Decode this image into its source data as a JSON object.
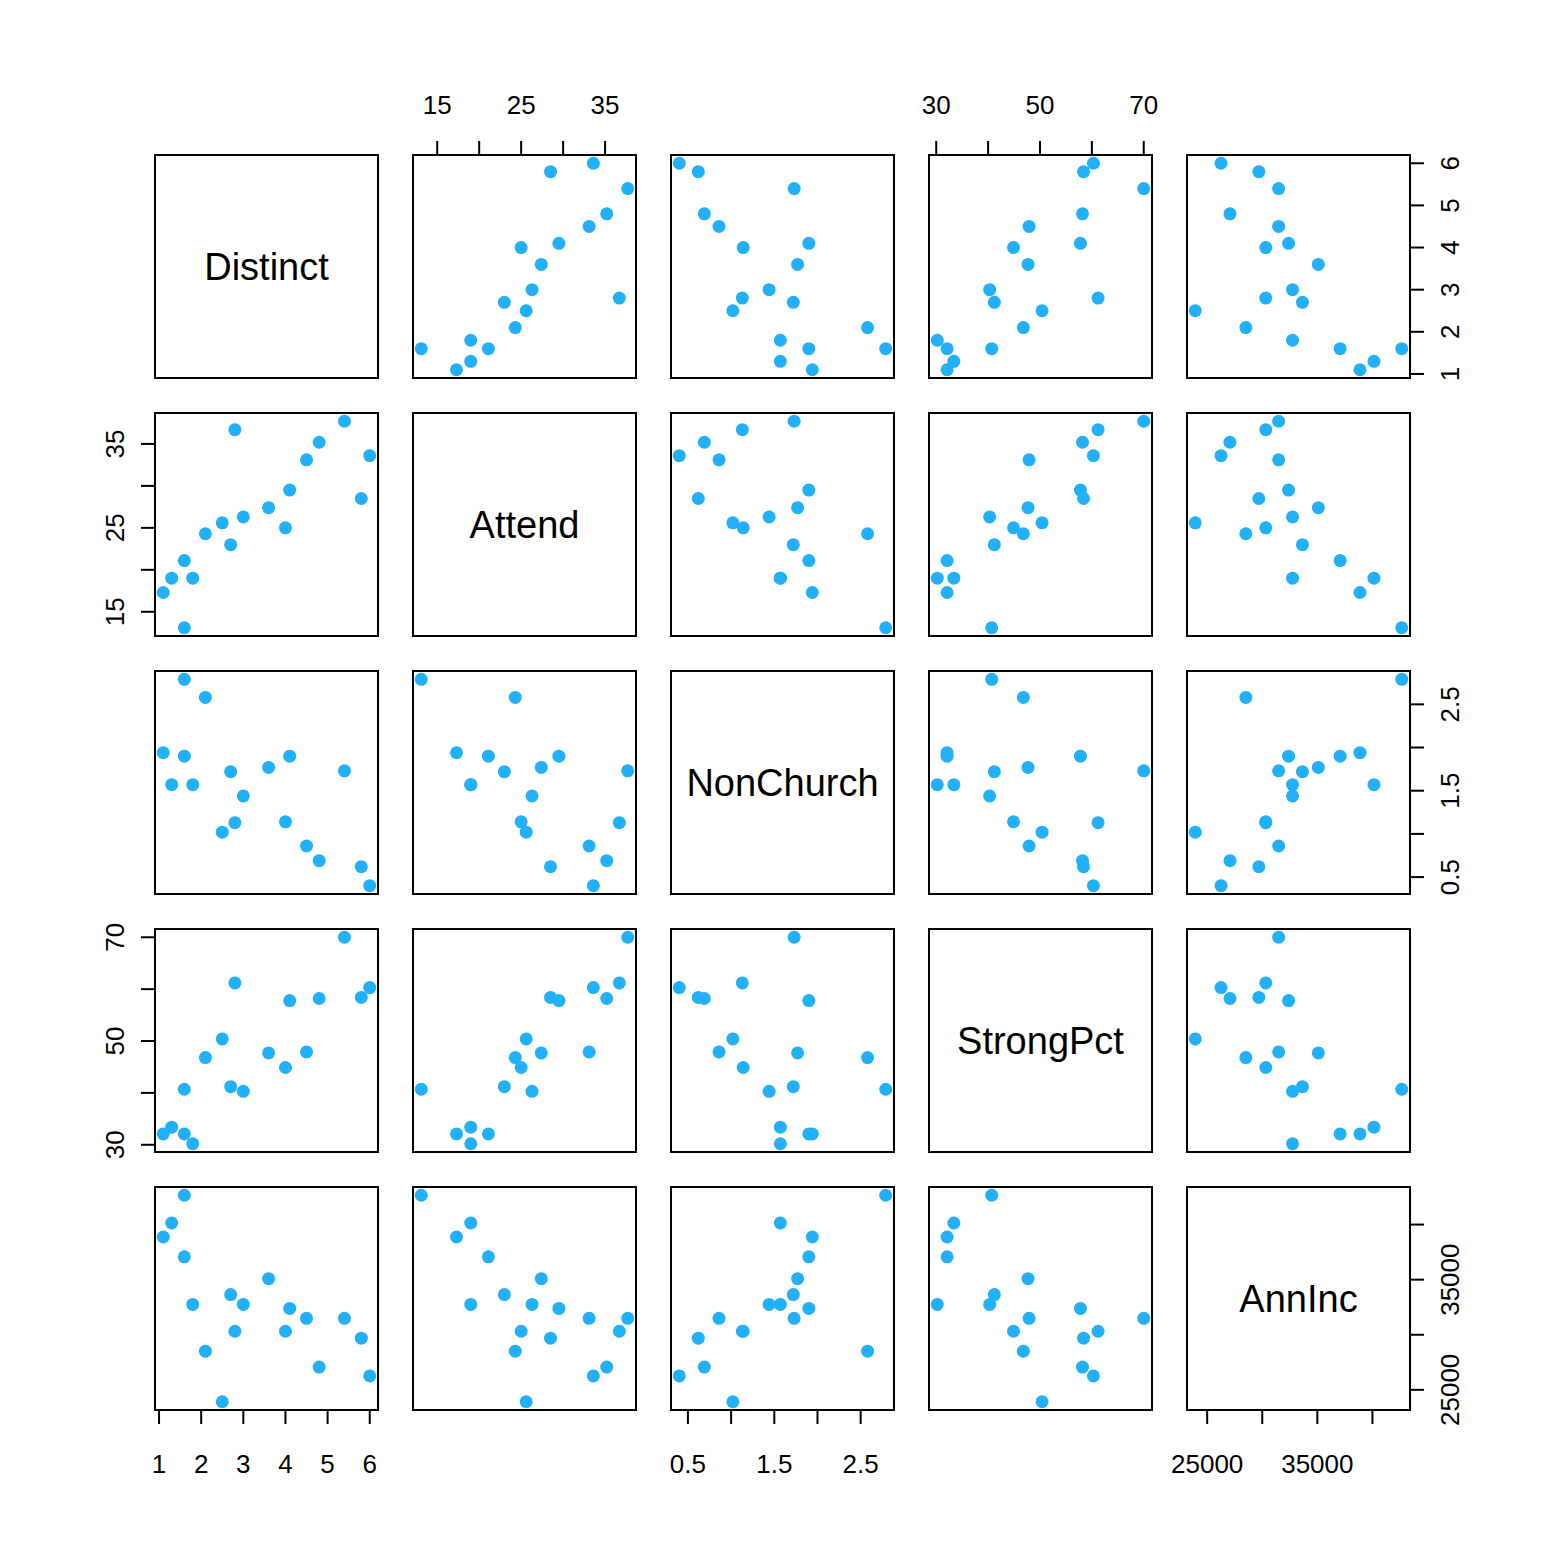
{
  "chart_data": {
    "type": "scatter_matrix",
    "color": "#22b0fb",
    "variables": [
      {
        "name": "Distinct",
        "lim": [
          0.904,
          6.196
        ],
        "ticks": [
          1,
          2,
          3,
          4,
          5,
          6
        ],
        "values": [
          1.6,
          1.1,
          1.8,
          1.3,
          1.6,
          2.7,
          2.1,
          4.0,
          2.5,
          3.0,
          3.6,
          5.8,
          4.1,
          4.5,
          6.0,
          4.8,
          2.8,
          5.4
        ]
      },
      {
        "name": "Attend",
        "lim": [
          12.116,
          38.684
        ],
        "ticks": [
          15,
          20,
          25,
          30,
          35
        ],
        "values": [
          13.1,
          17.3,
          19.0,
          19.0,
          21.1,
          23.0,
          24.3,
          25.0,
          25.6,
          26.3,
          27.4,
          28.5,
          29.5,
          33.1,
          33.6,
          35.2,
          36.7,
          37.7
        ]
      },
      {
        "name": "NonChurch",
        "lim": [
          0.304,
          2.886
        ],
        "ticks": [
          0.5,
          1,
          1.5,
          2,
          2.5
        ],
        "values": [
          2.79,
          1.94,
          1.57,
          1.57,
          1.9,
          1.72,
          2.58,
          1.14,
          1.02,
          1.44,
          1.77,
          0.62,
          1.9,
          0.86,
          0.4,
          0.69,
          1.13,
          1.73
        ]
      },
      {
        "name": "StrongPct",
        "lim": [
          28.608,
          71.592
        ],
        "ticks": [
          30,
          40,
          50,
          60,
          70
        ],
        "values": [
          40.7,
          32.1,
          30.2,
          33.4,
          32.1,
          41.2,
          46.8,
          44.9,
          50.4,
          40.3,
          47.7,
          58.4,
          57.8,
          47.9,
          60.3,
          58.2,
          61.2,
          70.0
        ]
      },
      {
        "name": "AnnInc",
        "lim": [
          23170,
          43410
        ],
        "ticks": [
          25000,
          30000,
          35000,
          40000
        ],
        "values": [
          42660,
          38870,
          32750,
          40140,
          37070,
          33650,
          28510,
          30320,
          23920,
          32750,
          35090,
          29690,
          32390,
          31490,
          26260,
          27070,
          30320,
          31490
        ]
      }
    ]
  }
}
